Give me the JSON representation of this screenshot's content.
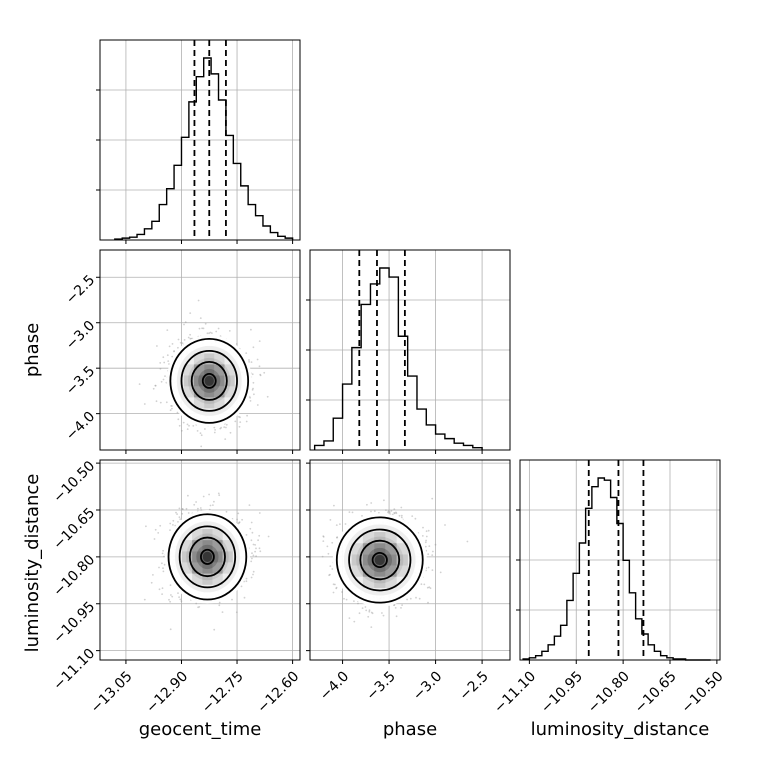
{
  "chart_data": {
    "type": "corner",
    "parameters": [
      "geocent_time",
      "phase",
      "luminosity_distance"
    ],
    "grid": true,
    "quantile_lines": "dashed",
    "contour_levels": 4,
    "diagonal": [
      {
        "name": "geocent_time",
        "xlim": [
          -13.12,
          -12.58
        ],
        "ticks": [
          -13.05,
          -12.9,
          -12.75,
          -12.6
        ],
        "tick_labels": [
          "−13.05",
          "−12.90",
          "−12.75",
          "−12.60"
        ],
        "quantiles": [
          -12.865,
          -12.825,
          -12.78
        ],
        "hist_edges": [
          -13.08,
          -13.06,
          -13.04,
          -13.02,
          -13.0,
          -12.98,
          -12.96,
          -12.94,
          -12.92,
          -12.9,
          -12.88,
          -12.86,
          -12.84,
          -12.82,
          -12.8,
          -12.78,
          -12.76,
          -12.74,
          -12.72,
          -12.7,
          -12.68,
          -12.66,
          -12.64,
          -12.62,
          -12.6
        ],
        "hist_counts": [
          1,
          2,
          3,
          6,
          12,
          20,
          38,
          55,
          80,
          110,
          148,
          175,
          195,
          178,
          150,
          112,
          82,
          58,
          38,
          26,
          15,
          8,
          4,
          2
        ]
      },
      {
        "name": "phase",
        "xlim": [
          -4.35,
          -2.2
        ],
        "ticks": [
          -4.0,
          -3.5,
          -3.0,
          -2.5
        ],
        "tick_labels": [
          "−4.0",
          "−3.5",
          "−3.0",
          "−2.5"
        ],
        "quantiles": [
          -3.82,
          -3.63,
          -3.33
        ],
        "hist_edges": [
          -4.3,
          -4.2,
          -4.1,
          -4.0,
          -3.9,
          -3.8,
          -3.7,
          -3.6,
          -3.5,
          -3.4,
          -3.3,
          -3.2,
          -3.1,
          -3.0,
          -2.9,
          -2.8,
          -2.7,
          -2.6,
          -2.5
        ],
        "hist_counts": [
          4,
          8,
          28,
          58,
          90,
          128,
          146,
          160,
          152,
          100,
          65,
          36,
          22,
          14,
          10,
          6,
          4,
          2
        ]
      },
      {
        "name": "luminosity_distance",
        "xlim": [
          -11.13,
          -10.49
        ],
        "ticks": [
          -11.1,
          -10.95,
          -10.8,
          -10.65,
          -10.5
        ],
        "tick_labels": [
          "−11.10",
          "−10.95",
          "−10.80",
          "−10.65",
          "−10.50"
        ],
        "quantiles": [
          -10.91,
          -10.815,
          -10.735
        ],
        "hist_edges": [
          -11.12,
          -11.1,
          -11.08,
          -11.06,
          -11.04,
          -11.02,
          -11.0,
          -10.98,
          -10.96,
          -10.94,
          -10.92,
          -10.9,
          -10.88,
          -10.86,
          -10.84,
          -10.82,
          -10.8,
          -10.78,
          -10.76,
          -10.74,
          -10.72,
          -10.7,
          -10.68,
          -10.66,
          -10.64,
          -10.62,
          -10.6,
          -10.58,
          -10.56,
          -10.54,
          -10.52
        ],
        "hist_counts": [
          1,
          2,
          4,
          8,
          14,
          22,
          32,
          55,
          80,
          108,
          140,
          160,
          168,
          166,
          150,
          126,
          92,
          62,
          38,
          24,
          14,
          8,
          4,
          2,
          1,
          1,
          0,
          0,
          0,
          0
        ]
      }
    ],
    "joint": [
      {
        "x": "geocent_time",
        "y": "phase",
        "xlim": [
          -13.12,
          -12.58
        ],
        "ylim": [
          -4.4,
          -2.2
        ],
        "yticks": [
          -2.5,
          -3.0,
          -3.5,
          -4.0
        ],
        "ytick_labels": [
          "−2.5",
          "−3.0",
          "−3.5",
          "−4.0"
        ],
        "center": [
          -12.825,
          -3.64
        ],
        "sigma": [
          0.05,
          0.22
        ]
      },
      {
        "x": "geocent_time",
        "y": "luminosity_distance",
        "xlim": [
          -13.12,
          -12.58
        ],
        "ylim": [
          -11.13,
          -10.49
        ],
        "yticks": [
          -10.5,
          -10.65,
          -10.8,
          -10.95,
          -11.1
        ],
        "ytick_labels": [
          "−10.50",
          "−10.65",
          "−10.80",
          "−10.95",
          "−11.10"
        ],
        "center": [
          -12.83,
          -10.8
        ],
        "sigma": [
          0.05,
          0.065
        ]
      },
      {
        "x": "phase",
        "y": "luminosity_distance",
        "xlim": [
          -4.35,
          -2.2
        ],
        "ylim": [
          -11.13,
          -10.49
        ],
        "center": [
          -3.6,
          -10.81
        ],
        "sigma": [
          0.22,
          0.065
        ]
      }
    ]
  }
}
